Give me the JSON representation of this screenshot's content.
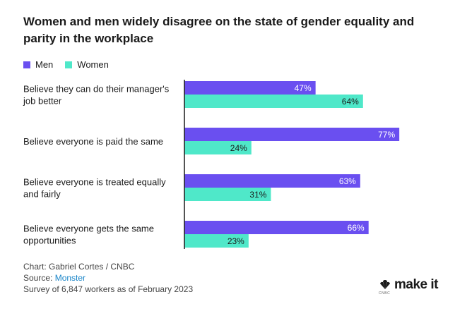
{
  "title": "Women and men widely disagree on the state of gender equality and parity in the workplace",
  "colors": {
    "men": "#6a4ff0",
    "women": "#4fe8c9"
  },
  "chart_data": {
    "type": "bar",
    "orientation": "horizontal",
    "categories": [
      [
        "Believe they can do their manager's",
        "job better"
      ],
      [
        "Believe everyone is paid the same"
      ],
      [
        "Believe everyone is treated equally",
        "and fairly"
      ],
      [
        "Believe everyone gets the same",
        "opportunities"
      ]
    ],
    "series": [
      {
        "name": "Men",
        "values": [
          47,
          77,
          63,
          66
        ],
        "labels": [
          "47%",
          "77%",
          "63%",
          "66%"
        ]
      },
      {
        "name": "Women",
        "values": [
          64,
          24,
          31,
          23
        ],
        "labels": [
          "64%",
          "24%",
          "31%",
          "23%"
        ]
      }
    ],
    "xlim": [
      0,
      100
    ],
    "legend": "top-left",
    "grid": false
  },
  "footer": {
    "credit": "Chart: Gabriel Cortes / CNBC",
    "source_prefix": "Source: ",
    "source_name": "Monster",
    "note": "Survey of 6,847 workers as of February 2023"
  },
  "brand": {
    "name": "make it",
    "sub": "CNBC"
  }
}
